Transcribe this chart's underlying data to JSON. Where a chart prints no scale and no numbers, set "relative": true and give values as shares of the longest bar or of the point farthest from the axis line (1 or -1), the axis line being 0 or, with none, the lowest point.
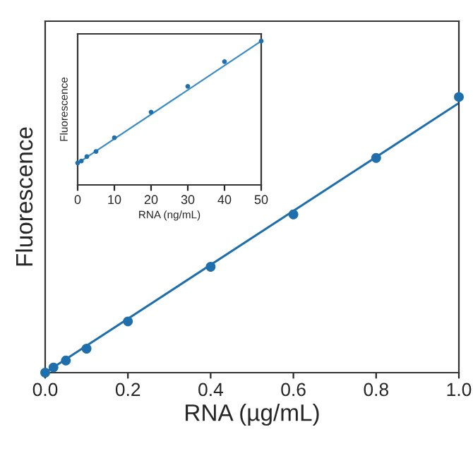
{
  "chart_data": [
    {
      "type": "scatter",
      "xlabel": "RNA (µg/mL)",
      "ylabel": "Fluorescence",
      "relative": true,
      "xlim": [
        0,
        1
      ],
      "xticks": [
        {
          "value": 0,
          "label": "0.0"
        },
        {
          "value": 0.2,
          "label": "0.2"
        },
        {
          "value": 0.4,
          "label": "0.4"
        },
        {
          "value": 0.6,
          "label": "0.6"
        },
        {
          "value": 0.8,
          "label": "0.8"
        },
        {
          "value": 1,
          "label": "1.0"
        }
      ],
      "tick_labels": "x",
      "grid": false,
      "legend": false,
      "series": [
        {
          "marker": "circle",
          "color": "#1f6fad",
          "x": [
            0,
            0.02,
            0.05,
            0.1,
            0.2,
            0.4,
            0.6,
            0.8,
            1.0
          ],
          "values": [
            0,
            0.019,
            0.044,
            0.087,
            0.186,
            0.384,
            0.574,
            0.779,
            1.0
          ]
        },
        {
          "type": "line",
          "marker": "none",
          "color": "#1f6fad",
          "x": [
            0,
            1.0
          ],
          "values": [
            0,
            0.978
          ]
        }
      ]
    },
    {
      "type": "scatter",
      "xlabel": "RNA (ng/mL)",
      "ylabel": "Fluorescence",
      "relative": true,
      "xlim": [
        0,
        50
      ],
      "xticks": [
        0,
        10,
        20,
        30,
        40,
        50
      ],
      "tick_labels": "x",
      "grid": false,
      "legend": false,
      "series": [
        {
          "marker": "circle",
          "color": "#1f6fad",
          "x": [
            0,
            1,
            2.5,
            5,
            10,
            20,
            30,
            40,
            50
          ],
          "values": [
            0.153,
            0.166,
            0.197,
            0.232,
            0.328,
            0.506,
            0.685,
            0.857,
            1.0
          ]
        },
        {
          "type": "line",
          "marker": "none",
          "color": "#3a8cc8",
          "x": [
            0,
            50
          ],
          "values": [
            0.15,
            1.0
          ]
        }
      ]
    }
  ]
}
